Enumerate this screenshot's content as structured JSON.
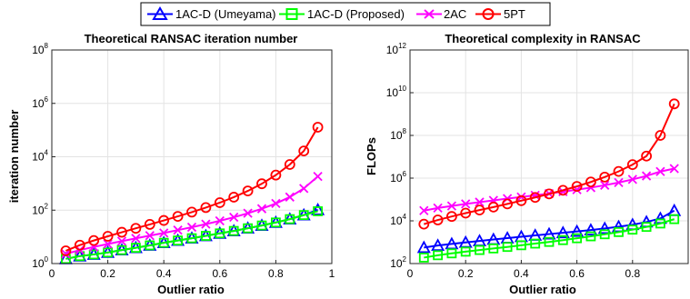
{
  "legend": {
    "entries": [
      {
        "label": "1AC-D (Umeyama)",
        "color": "#0000ff",
        "marker": "triangle"
      },
      {
        "label": "1AC-D (Proposed)",
        "color": "#00ff00",
        "marker": "square"
      },
      {
        "label": "2AC",
        "color": "#ff00ff",
        "marker": "x"
      },
      {
        "label": "5PT",
        "color": "#ff0000",
        "marker": "circle"
      }
    ]
  },
  "chart_data": [
    {
      "type": "line",
      "title": "Theoretical RANSAC iteration number",
      "xlabel": "Outlier ratio",
      "ylabel": "iteration number",
      "xlim": [
        0,
        1
      ],
      "ylim": [
        1,
        100000000
      ],
      "yscale": "log",
      "grid": true,
      "xticks": [
        "0",
        "0.2",
        "0.4",
        "0.6",
        "0.8",
        "1"
      ],
      "yticks": [
        {
          "base": "10",
          "exp": "0"
        },
        {
          "base": "10",
          "exp": "2"
        },
        {
          "base": "10",
          "exp": "4"
        },
        {
          "base": "10",
          "exp": "6"
        },
        {
          "base": "10",
          "exp": "8"
        }
      ],
      "x": [
        0.05,
        0.1,
        0.15,
        0.2,
        0.25,
        0.3,
        0.35,
        0.4,
        0.45,
        0.5,
        0.55,
        0.6,
        0.65,
        0.7,
        0.75,
        0.8,
        0.85,
        0.9,
        0.95
      ],
      "series": [
        {
          "name": "1AC-D (Umeyama)",
          "values": [
            1.5,
            1.9,
            2.2,
            2.6,
            3.2,
            3.9,
            4.8,
            6.0,
            7.3,
            8.9,
            10.9,
            13.5,
            16.7,
            21.0,
            26.7,
            34.6,
            46.2,
            65.5,
            103
          ]
        },
        {
          "name": "1AC-D (Proposed)",
          "values": [
            1.5,
            1.9,
            2.2,
            2.6,
            3.2,
            3.9,
            4.8,
            6.0,
            7.3,
            8.9,
            10.9,
            13.5,
            16.7,
            21.0,
            26.7,
            34.6,
            46.2,
            65.5,
            91
          ]
        },
        {
          "name": "2AC",
          "values": [
            2.3,
            3.2,
            4.2,
            5.4,
            6.9,
            8.8,
            11.1,
            14.0,
            17.9,
            23.0,
            30.0,
            39.8,
            54.3,
            76.6,
            113,
            178,
            310,
            650,
            1840
          ]
        },
        {
          "name": "5PT",
          "values": [
            3.0,
            4.9,
            7.3,
            10.5,
            14.9,
            20.9,
            29.3,
            41.2,
            58.5,
            84.5,
            125,
            191,
            307,
            525,
            976,
            2060,
            5140,
            16500,
            128000
          ]
        }
      ]
    },
    {
      "type": "line",
      "title": "Theoretical complexity in RANSAC",
      "xlabel": "Outlier ratio",
      "ylabel": "FLOPs",
      "xlim": [
        0,
        1
      ],
      "ylim": [
        100,
        1000000000000
      ],
      "yscale": "log",
      "grid": true,
      "xticks": [
        "0",
        "0.2",
        "0.4",
        "0.6",
        "0.8"
      ],
      "yticks": [
        {
          "base": "10",
          "exp": "2"
        },
        {
          "base": "10",
          "exp": "4"
        },
        {
          "base": "10",
          "exp": "6"
        },
        {
          "base": "10",
          "exp": "8"
        },
        {
          "base": "10",
          "exp": "10"
        },
        {
          "base": "10",
          "exp": "12"
        }
      ],
      "x": [
        0.05,
        0.1,
        0.15,
        0.2,
        0.25,
        0.3,
        0.35,
        0.4,
        0.45,
        0.5,
        0.55,
        0.6,
        0.65,
        0.7,
        0.75,
        0.8,
        0.85,
        0.9,
        0.95
      ],
      "series": [
        {
          "name": "1AC-D (Umeyama)",
          "values": [
            560,
            700,
            830,
            980,
            1150,
            1340,
            1560,
            1800,
            2080,
            2400,
            2750,
            3200,
            3700,
            4400,
            5300,
            6600,
            8800,
            13000,
            30000
          ]
        },
        {
          "name": "1AC-D (Proposed)",
          "values": [
            190,
            245,
            300,
            360,
            430,
            510,
            600,
            720,
            860,
            1030,
            1250,
            1530,
            1880,
            2350,
            2980,
            3870,
            5200,
            7500,
            12000
          ]
        },
        {
          "name": "2AC",
          "values": [
            30000,
            40000,
            50000,
            62000,
            75000,
            91000,
            110000,
            131000,
            158000,
            190000,
            232000,
            287000,
            360000,
            465000,
            620000,
            870000,
            1270000,
            2030000,
            2800000
          ]
        },
        {
          "name": "5PT",
          "values": [
            7000,
            11000,
            16000,
            23000,
            32000,
            44000,
            62000,
            88000,
            125000,
            182000,
            270000,
            410000,
            660000,
            1120000,
            2060000,
            4300000,
            10800000,
            100000000,
            3000000000
          ]
        }
      ]
    }
  ]
}
